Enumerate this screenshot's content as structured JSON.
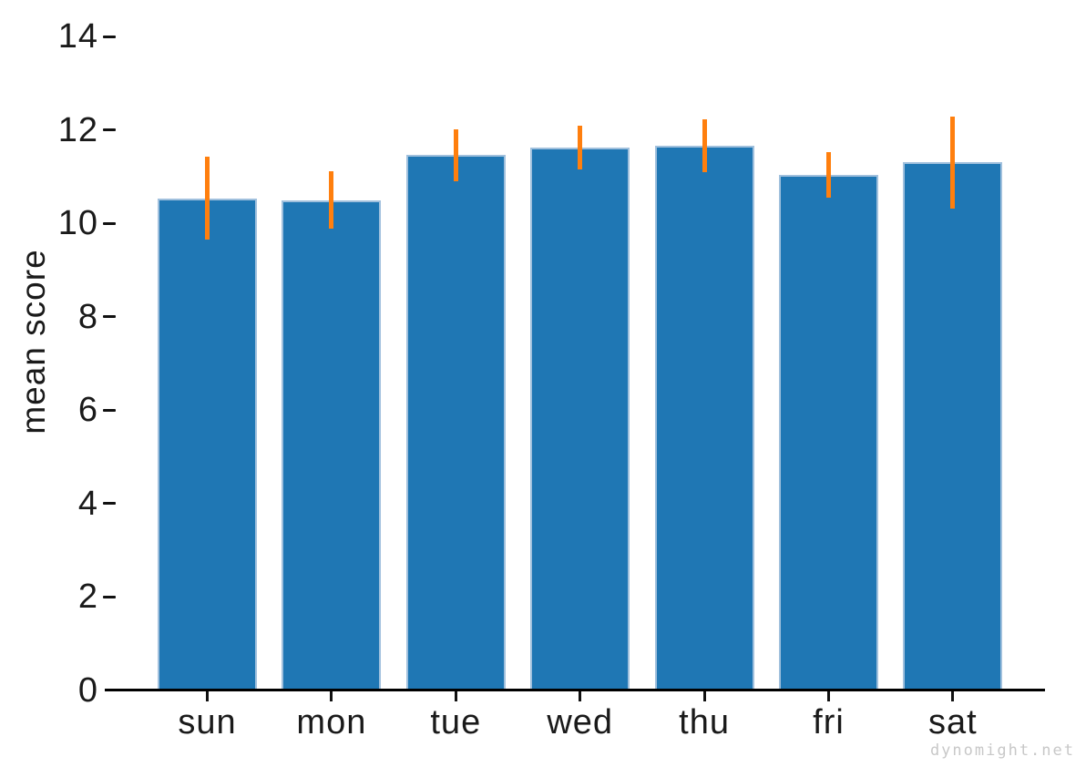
{
  "figure": {
    "watermark": "dynomight.net",
    "colors": {
      "bar_fill": "#1f77b4",
      "bar_edge": "#a0c0dd",
      "error_bar": "#ff7f0e",
      "axis": "#000000",
      "text": "#1a1a1a",
      "watermark": "#c8c8c8",
      "background": "#ffffff"
    }
  },
  "chart_data": {
    "type": "bar",
    "title": "",
    "xlabel": "",
    "ylabel": "mean score",
    "categories": [
      "sun",
      "mon",
      "tue",
      "wed",
      "thu",
      "fri",
      "sat"
    ],
    "values": [
      10.53,
      10.5,
      11.47,
      11.62,
      11.66,
      11.03,
      11.3
    ],
    "error_low": [
      9.65,
      9.89,
      10.9,
      11.16,
      11.1,
      10.55,
      10.32
    ],
    "error_high": [
      11.42,
      11.12,
      12.02,
      12.08,
      12.23,
      11.52,
      12.28
    ],
    "yticks": [
      0,
      2,
      4,
      6,
      8,
      10,
      12,
      14
    ],
    "ylim": [
      0,
      14
    ],
    "grid": false,
    "legend": null,
    "spines": "bottom-only",
    "error_bar_caps": false
  }
}
